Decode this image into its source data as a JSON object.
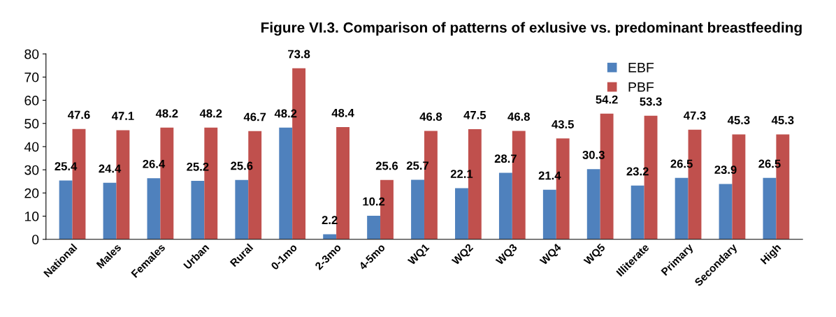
{
  "chart_data": {
    "type": "bar",
    "title": "Figure VI.3. Comparison of patterns of exlusive vs. predominant breastfeeding",
    "categories": [
      "National",
      "Males",
      "Females",
      "Urban",
      "Rural",
      "0-1mo",
      "2-3mo",
      "4-5mo",
      "WQ1",
      "WQ2",
      "WQ3",
      "WQ4",
      "WQ5",
      "Illiterate",
      "Primary",
      "Secondary",
      "High"
    ],
    "series": [
      {
        "name": "EBF",
        "color": "#4f81bd",
        "values": [
          25.4,
          24.4,
          26.4,
          25.2,
          25.6,
          48.2,
          2.2,
          10.2,
          25.7,
          22.1,
          28.7,
          21.4,
          30.3,
          23.2,
          26.5,
          23.9,
          26.5
        ]
      },
      {
        "name": "PBF",
        "color": "#c0504d",
        "values": [
          47.6,
          47.1,
          48.2,
          48.2,
          46.7,
          73.8,
          48.4,
          25.6,
          46.8,
          47.5,
          46.8,
          43.5,
          54.2,
          53.3,
          47.3,
          45.3,
          45.3
        ]
      }
    ],
    "ylim": [
      0,
      80
    ],
    "yticks": [
      0,
      10,
      20,
      30,
      40,
      50,
      60,
      70,
      80
    ],
    "grid": false,
    "legend": "top right",
    "data_labels": true
  }
}
